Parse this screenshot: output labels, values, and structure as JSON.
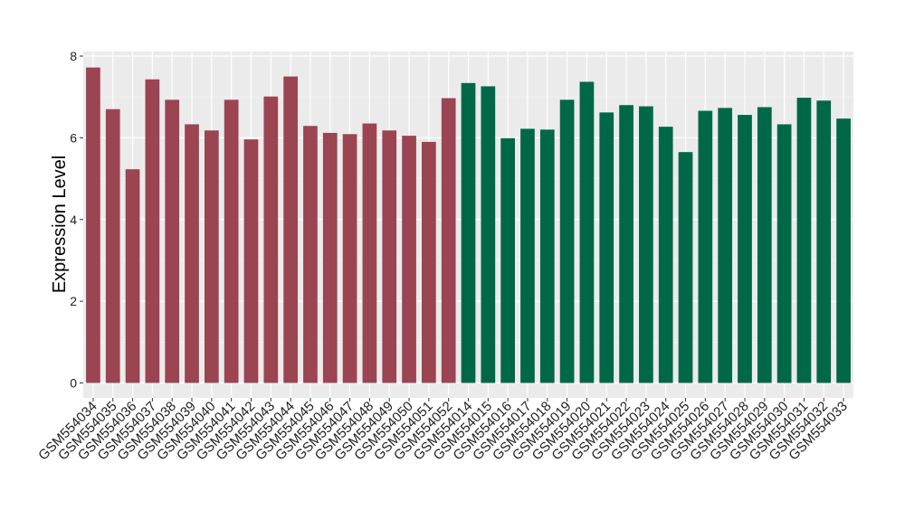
{
  "chart_data": {
    "type": "bar",
    "xlabel": "",
    "ylabel": "Expression Level",
    "ylim": [
      -0.2,
      8.1
    ],
    "yticks": [
      0,
      2,
      4,
      6,
      8
    ],
    "grid": true,
    "legend": "none",
    "categories": [
      "GSM554034",
      "GSM554035",
      "GSM554036",
      "GSM554037",
      "GSM554038",
      "GSM554039",
      "GSM554040",
      "GSM554041",
      "GSM554042",
      "GSM554043",
      "GSM554044",
      "GSM554045",
      "GSM554046",
      "GSM554047",
      "GSM554048",
      "GSM554049",
      "GSM554050",
      "GSM554051",
      "GSM554052",
      "GSM554014",
      "GSM554015",
      "GSM554016",
      "GSM554017",
      "GSM554018",
      "GSM554019",
      "GSM554020",
      "GSM554021",
      "GSM554022",
      "GSM554023",
      "GSM554024",
      "GSM554025",
      "GSM554026",
      "GSM554027",
      "GSM554028",
      "GSM554029",
      "GSM554030",
      "GSM554031",
      "GSM554032",
      "GSM554033"
    ],
    "values": [
      7.72,
      6.7,
      5.23,
      7.43,
      6.93,
      6.33,
      6.18,
      6.93,
      5.96,
      7.01,
      7.5,
      6.29,
      6.12,
      6.09,
      6.35,
      6.18,
      6.05,
      5.9,
      6.97,
      7.34,
      7.26,
      5.99,
      6.22,
      6.2,
      6.93,
      7.37,
      6.62,
      6.8,
      6.77,
      6.27,
      5.65,
      6.66,
      6.73,
      6.56,
      6.75,
      6.33,
      6.98,
      6.91,
      6.47
    ],
    "groups": [
      {
        "color": "#9b4452",
        "start": 0,
        "count": 19
      },
      {
        "color": "#006847",
        "start": 19,
        "count": 20
      }
    ]
  }
}
